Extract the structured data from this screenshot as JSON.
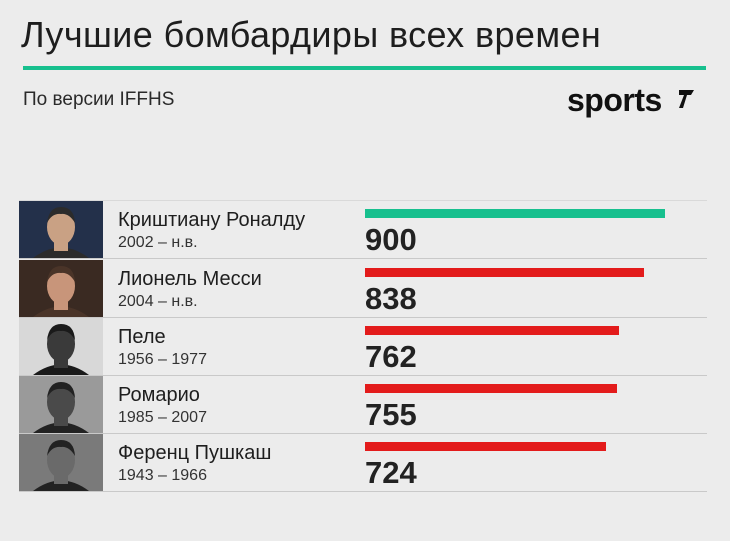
{
  "header": {
    "title": "Лучшие бомбардиры всех времен",
    "subtitle": "По версии IFFHS",
    "logo_text": "sports"
  },
  "colors": {
    "accent_green": "#17c08e",
    "bar_red": "#e31b1b",
    "text": "#1e1e1e"
  },
  "chart_data": {
    "type": "bar",
    "orientation": "horizontal",
    "categories": [
      "Криштиану Роналду",
      "Лионель Месси",
      "Пеле",
      "Ромарио",
      "Ференц Пушкаш"
    ],
    "years": [
      "2002 – н.в.",
      "2004 – н.в.",
      "1956 – 1977",
      "1985 – 2007",
      "1943 – 1966"
    ],
    "values": [
      900,
      838,
      762,
      755,
      724
    ],
    "value_labels": [
      "900",
      "838",
      "762",
      "755",
      "724"
    ],
    "bar_colors": [
      "#17c08e",
      "#e31b1b",
      "#e31b1b",
      "#e31b1b",
      "#e31b1b"
    ],
    "photo_icons": [
      "portrait-icon",
      "portrait-icon",
      "portrait-icon",
      "portrait-icon",
      "portrait-icon"
    ],
    "xlim": [
      0,
      900
    ]
  }
}
